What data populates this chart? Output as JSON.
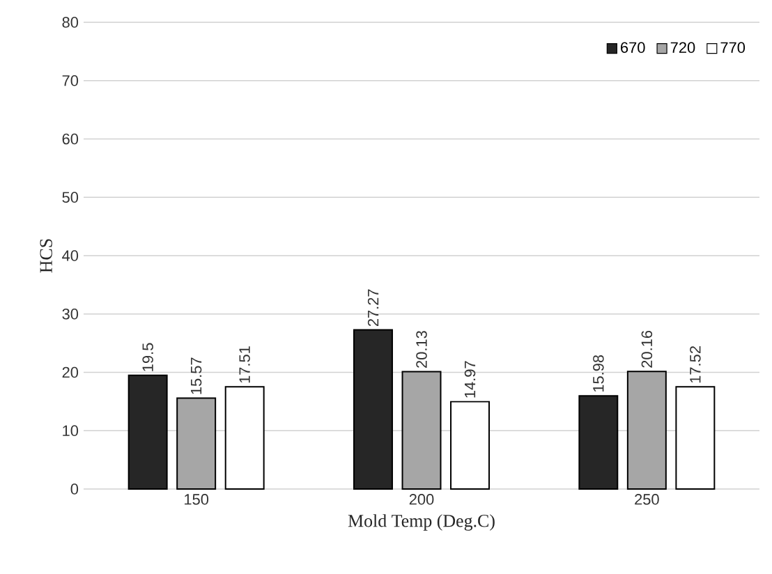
{
  "chart_data": {
    "type": "bar",
    "xlabel": "Mold Temp (Deg.C)",
    "ylabel": "HCS",
    "categories": [
      "150",
      "200",
      "250"
    ],
    "series": [
      {
        "name": "670",
        "color": "#262626",
        "values": [
          19.5,
          27.27,
          15.98
        ]
      },
      {
        "name": "720",
        "color": "#a6a6a6",
        "values": [
          15.57,
          20.13,
          20.16
        ]
      },
      {
        "name": "770",
        "color": "#ffffff",
        "values": [
          17.51,
          14.97,
          17.52
        ]
      }
    ],
    "ylim": [
      0,
      80
    ],
    "yticks": [
      0,
      10,
      20,
      30,
      40,
      50,
      60,
      70,
      80
    ],
    "grid": "y",
    "legend": "top right",
    "data_labels": true
  }
}
